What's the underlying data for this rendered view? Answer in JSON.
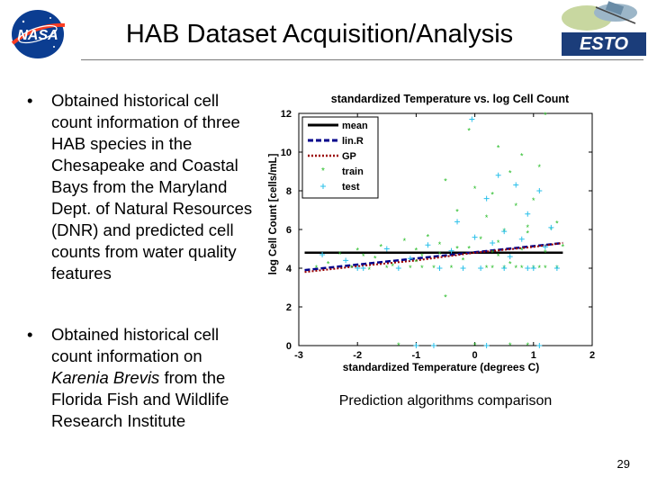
{
  "slide": {
    "title": "HAB Dataset Acquisition/Analysis",
    "bullets": [
      {
        "before": "Obtained historical cell count information of three HAB species in the Chesapeake and Coastal Bays from the Maryland Dept. of Natural Resources (DNR) and predicted cell counts from water quality features",
        "emph": "",
        "after": ""
      },
      {
        "before": "Obtained historical cell count information on ",
        "emph": "Karenia Brevis",
        "after": " from the Florida Fish and Wildlife Research Institute"
      }
    ],
    "caption": "Prediction algorithms comparison",
    "page_number": "29",
    "bullet_char": "•"
  },
  "logos": {
    "left": {
      "icon": "nasa-logo-icon",
      "text": "NASA"
    },
    "right": {
      "icon": "esto-logo-icon",
      "text": "ESTO"
    }
  },
  "chart_data": {
    "type": "scatter",
    "title": "standardized Temperature vs. log Cell Count",
    "xlabel": "standardized Temperature (degrees C)",
    "ylabel": "log Cell Count [cells/mL]",
    "xlim": [
      -3,
      2
    ],
    "ylim": [
      0,
      12
    ],
    "xticks": [
      -3,
      -2,
      -1,
      0,
      1,
      2
    ],
    "yticks": [
      0,
      2,
      4,
      6,
      8,
      10,
      12
    ],
    "legend_position": "top-left",
    "grid": false,
    "series": [
      {
        "name": "mean",
        "kind": "line",
        "color": "#000000",
        "x": [
          -2.9,
          1.5
        ],
        "y": [
          4.8,
          4.8
        ]
      },
      {
        "name": "lin.R",
        "kind": "line",
        "color": "#00008b",
        "x": [
          -2.9,
          1.5
        ],
        "y": [
          3.9,
          5.3
        ]
      },
      {
        "name": "GP",
        "kind": "line",
        "color": "#9a0000",
        "x": [
          -2.9,
          -2.0,
          -1.0,
          0.0,
          1.0,
          1.5
        ],
        "y": [
          3.8,
          4.1,
          4.4,
          4.8,
          5.1,
          5.3
        ]
      },
      {
        "name": "train",
        "kind": "points",
        "color": "#22bb22",
        "x": [
          1.2,
          -0.1,
          0.4,
          0.8,
          1.1,
          0.6,
          -0.5,
          0.0,
          0.3,
          1.0,
          0.7,
          -0.3,
          0.2,
          1.4,
          0.9,
          0.5,
          -0.8,
          -1.2,
          -1.6,
          -2.0,
          -2.3,
          -0.6,
          0.1,
          0.9,
          1.3,
          0.4,
          -0.2,
          0.6,
          1.1,
          -1.0,
          -1.4,
          -1.8,
          -2.5,
          -0.9,
          0.8,
          1.2,
          -0.4,
          0.3,
          0.7,
          1.0,
          -1.1,
          -0.7,
          0.2,
          0.5,
          -1.5,
          -2.1,
          -2.7,
          1.4,
          -0.5,
          0.6,
          -1.3,
          0.0,
          0.9,
          -0.1,
          0.4,
          1.2,
          -0.6,
          -1.7,
          0.8,
          1.5,
          -1.9,
          0.3,
          -0.3,
          -1.0,
          -0.9
        ],
        "y": [
          11.9,
          11.1,
          10.2,
          9.8,
          9.2,
          8.9,
          8.5,
          8.1,
          7.8,
          7.5,
          7.2,
          6.9,
          6.6,
          6.3,
          6.1,
          5.9,
          5.6,
          5.4,
          5.1,
          4.9,
          4.7,
          5.2,
          5.5,
          5.8,
          6.0,
          4.6,
          4.4,
          4.2,
          4.0,
          4.3,
          4.1,
          3.9,
          4.2,
          4.0,
          4.0,
          4.0,
          4.0,
          4.0,
          4.0,
          4.0,
          4.0,
          4.0,
          4.0,
          4.0,
          4.0,
          4.0,
          4.0,
          4.0,
          2.5,
          0.0,
          0.0,
          0.0,
          0.0,
          5.0,
          5.3,
          4.8,
          4.7,
          4.5,
          4.9,
          5.1,
          4.6,
          4.8,
          5.0,
          4.9,
          4.6
        ]
      },
      {
        "name": "test",
        "kind": "points",
        "color": "#2ac0ea",
        "x": [
          -0.05,
          0.4,
          0.7,
          1.1,
          0.2,
          -0.3,
          0.9,
          1.3,
          0.5,
          0.0,
          -0.8,
          -1.5,
          -2.6,
          -2.2,
          -1.1,
          -0.4,
          0.3,
          0.8,
          1.2,
          0.6,
          -0.6,
          -1.9,
          0.1,
          1.0,
          1.4,
          -1.3,
          -0.2,
          0.5,
          0.9,
          -2.0,
          -0.7,
          0.2,
          1.1,
          -1.0
        ],
        "y": [
          11.7,
          8.8,
          8.3,
          8.0,
          7.6,
          6.4,
          6.8,
          6.1,
          5.9,
          5.6,
          5.2,
          5.0,
          4.7,
          4.4,
          4.5,
          4.9,
          5.3,
          5.5,
          5.1,
          4.6,
          4.0,
          4.0,
          4.0,
          4.0,
          4.0,
          4.0,
          4.0,
          4.0,
          4.0,
          4.0,
          0.0,
          0.0,
          0.0,
          0.0
        ]
      }
    ]
  }
}
